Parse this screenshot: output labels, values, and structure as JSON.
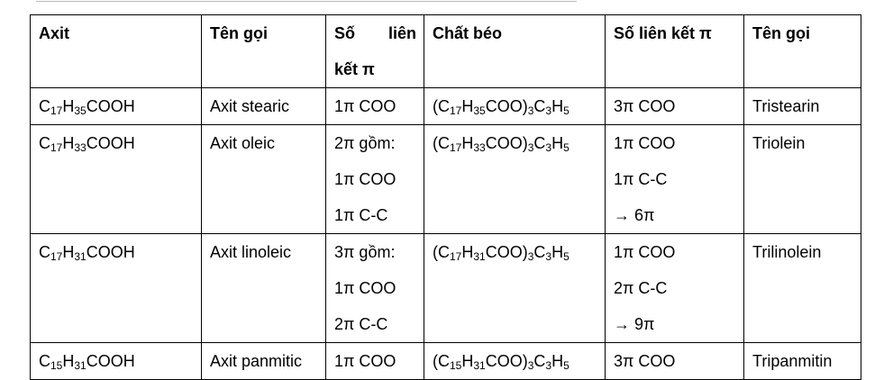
{
  "table": {
    "headers": {
      "acid": "Axit",
      "name": "Tên gọi",
      "pi_count_word1": "Số",
      "pi_count_word2": "liên",
      "pi_count_line2": "kết π",
      "fat": "Chất béo",
      "fat_pi_count": "Số liên kết π",
      "fat_name": "Tên gọi"
    },
    "rows": [
      {
        "acid": [
          [
            "C",
            "n"
          ],
          [
            "17",
            "s"
          ],
          [
            "H",
            "n"
          ],
          [
            "35",
            "s"
          ],
          [
            "COOH",
            "n"
          ]
        ],
        "acid_name": "Axit stearic",
        "pi_lines": [
          "1π COO"
        ],
        "fat": [
          [
            "(C",
            "n"
          ],
          [
            "17",
            "s"
          ],
          [
            "H",
            "n"
          ],
          [
            "35",
            "s"
          ],
          [
            "COO)",
            "n"
          ],
          [
            "3",
            "s"
          ],
          [
            "C",
            "n"
          ],
          [
            "3",
            "s"
          ],
          [
            "H",
            "n"
          ],
          [
            "5",
            "s"
          ]
        ],
        "fat_pi_lines": [
          "3π COO"
        ],
        "fat_name": "Tristearin"
      },
      {
        "acid": [
          [
            "C",
            "n"
          ],
          [
            "17",
            "s"
          ],
          [
            "H",
            "n"
          ],
          [
            "33",
            "s"
          ],
          [
            "COOH",
            "n"
          ]
        ],
        "acid_name": "Axit oleic",
        "pi_lines": [
          "2π gồm:",
          "1π COO",
          "1π C-C"
        ],
        "fat": [
          [
            "(C",
            "n"
          ],
          [
            "17",
            "s"
          ],
          [
            "H",
            "n"
          ],
          [
            "33",
            "s"
          ],
          [
            "COO)",
            "n"
          ],
          [
            "3",
            "s"
          ],
          [
            "C",
            "n"
          ],
          [
            "3",
            "s"
          ],
          [
            "H",
            "n"
          ],
          [
            "5",
            "s"
          ]
        ],
        "fat_pi_lines": [
          "1π COO",
          "1π C-C",
          "→ 6π"
        ],
        "fat_name": "Triolein"
      },
      {
        "acid": [
          [
            "C",
            "n"
          ],
          [
            "17",
            "s"
          ],
          [
            "H",
            "n"
          ],
          [
            "31",
            "s"
          ],
          [
            "COOH",
            "n"
          ]
        ],
        "acid_name": "Axit linoleic",
        "pi_lines": [
          "3π gồm:",
          "1π COO",
          "2π C-C"
        ],
        "fat": [
          [
            "(C",
            "n"
          ],
          [
            "17",
            "s"
          ],
          [
            "H",
            "n"
          ],
          [
            "31",
            "s"
          ],
          [
            "COO)",
            "n"
          ],
          [
            "3",
            "s"
          ],
          [
            "C",
            "n"
          ],
          [
            "3",
            "s"
          ],
          [
            "H",
            "n"
          ],
          [
            "5",
            "s"
          ]
        ],
        "fat_pi_lines": [
          "1π COO",
          "2π C-C",
          "→ 9π"
        ],
        "fat_name": "Trilinolein"
      },
      {
        "acid": [
          [
            "C",
            "n"
          ],
          [
            "15",
            "s"
          ],
          [
            "H",
            "n"
          ],
          [
            "31",
            "s"
          ],
          [
            "COOH",
            "n"
          ]
        ],
        "acid_name": "Axit panmitic",
        "pi_lines": [
          "1π COO"
        ],
        "fat": [
          [
            "(C",
            "n"
          ],
          [
            "15",
            "s"
          ],
          [
            "H",
            "n"
          ],
          [
            "31",
            "s"
          ],
          [
            "COO)",
            "n"
          ],
          [
            "3",
            "s"
          ],
          [
            "C",
            "n"
          ],
          [
            "3",
            "s"
          ],
          [
            "H",
            "n"
          ],
          [
            "5",
            "s"
          ]
        ],
        "fat_pi_lines": [
          "3π COO"
        ],
        "fat_name": "Tripanmitin"
      }
    ]
  }
}
